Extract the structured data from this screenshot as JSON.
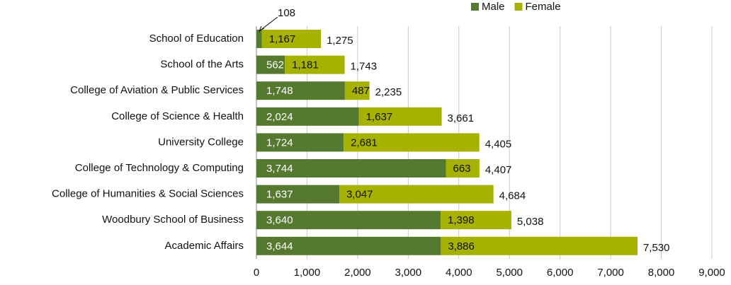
{
  "chart_data": {
    "type": "stacked-barh",
    "categories": [
      "School of Education",
      "School of the Arts",
      "College of Aviation & Public Services",
      "College of Science & Health",
      "University College",
      "College of Technology & Computing",
      "College of Humanities & Social Sciences",
      "Woodbury School of Business",
      "Academic Affairs"
    ],
    "series": [
      {
        "name": "Male",
        "color": "#55792f",
        "values": [
          108,
          562,
          1748,
          2024,
          1724,
          3744,
          1637,
          3640,
          3644
        ],
        "value_labels": [
          "108",
          "562",
          "1,748",
          "2,024",
          "1,724",
          "3,744",
          "1,637",
          "3,640",
          "3,644"
        ]
      },
      {
        "name": "Female",
        "color": "#a7b100",
        "values": [
          1167,
          1181,
          487,
          1637,
          2681,
          663,
          3047,
          1398,
          3886
        ],
        "value_labels": [
          "1,167",
          "1,181",
          "487",
          "1,637",
          "2,681",
          "663",
          "3,047",
          "1,398",
          "3,886"
        ]
      }
    ],
    "totals": [
      1275,
      1743,
      2235,
      3661,
      4405,
      4407,
      4684,
      5038,
      7530
    ],
    "total_labels": [
      "1,275",
      "1,743",
      "2,235",
      "3,661",
      "4,405",
      "4,407",
      "4,684",
      "5,038",
      "7,530"
    ],
    "xlim": [
      0,
      9000
    ],
    "xticks": [
      0,
      {
        "value": 1000,
        "label": "1,000"
      },
      {
        "value": 2000,
        "label": "2,000"
      },
      {
        "value": 3000,
        "label": "3,000"
      },
      {
        "value": 4000,
        "label": "4,000"
      },
      {
        "value": 5000,
        "label": "5,000"
      },
      {
        "value": 6000,
        "label": "6,000"
      },
      {
        "value": 7000,
        "label": "7,000"
      },
      {
        "value": 8000,
        "label": "8,000"
      },
      {
        "value": 9000,
        "label": "9,000"
      }
    ],
    "grid": true,
    "legend": "top-right"
  }
}
